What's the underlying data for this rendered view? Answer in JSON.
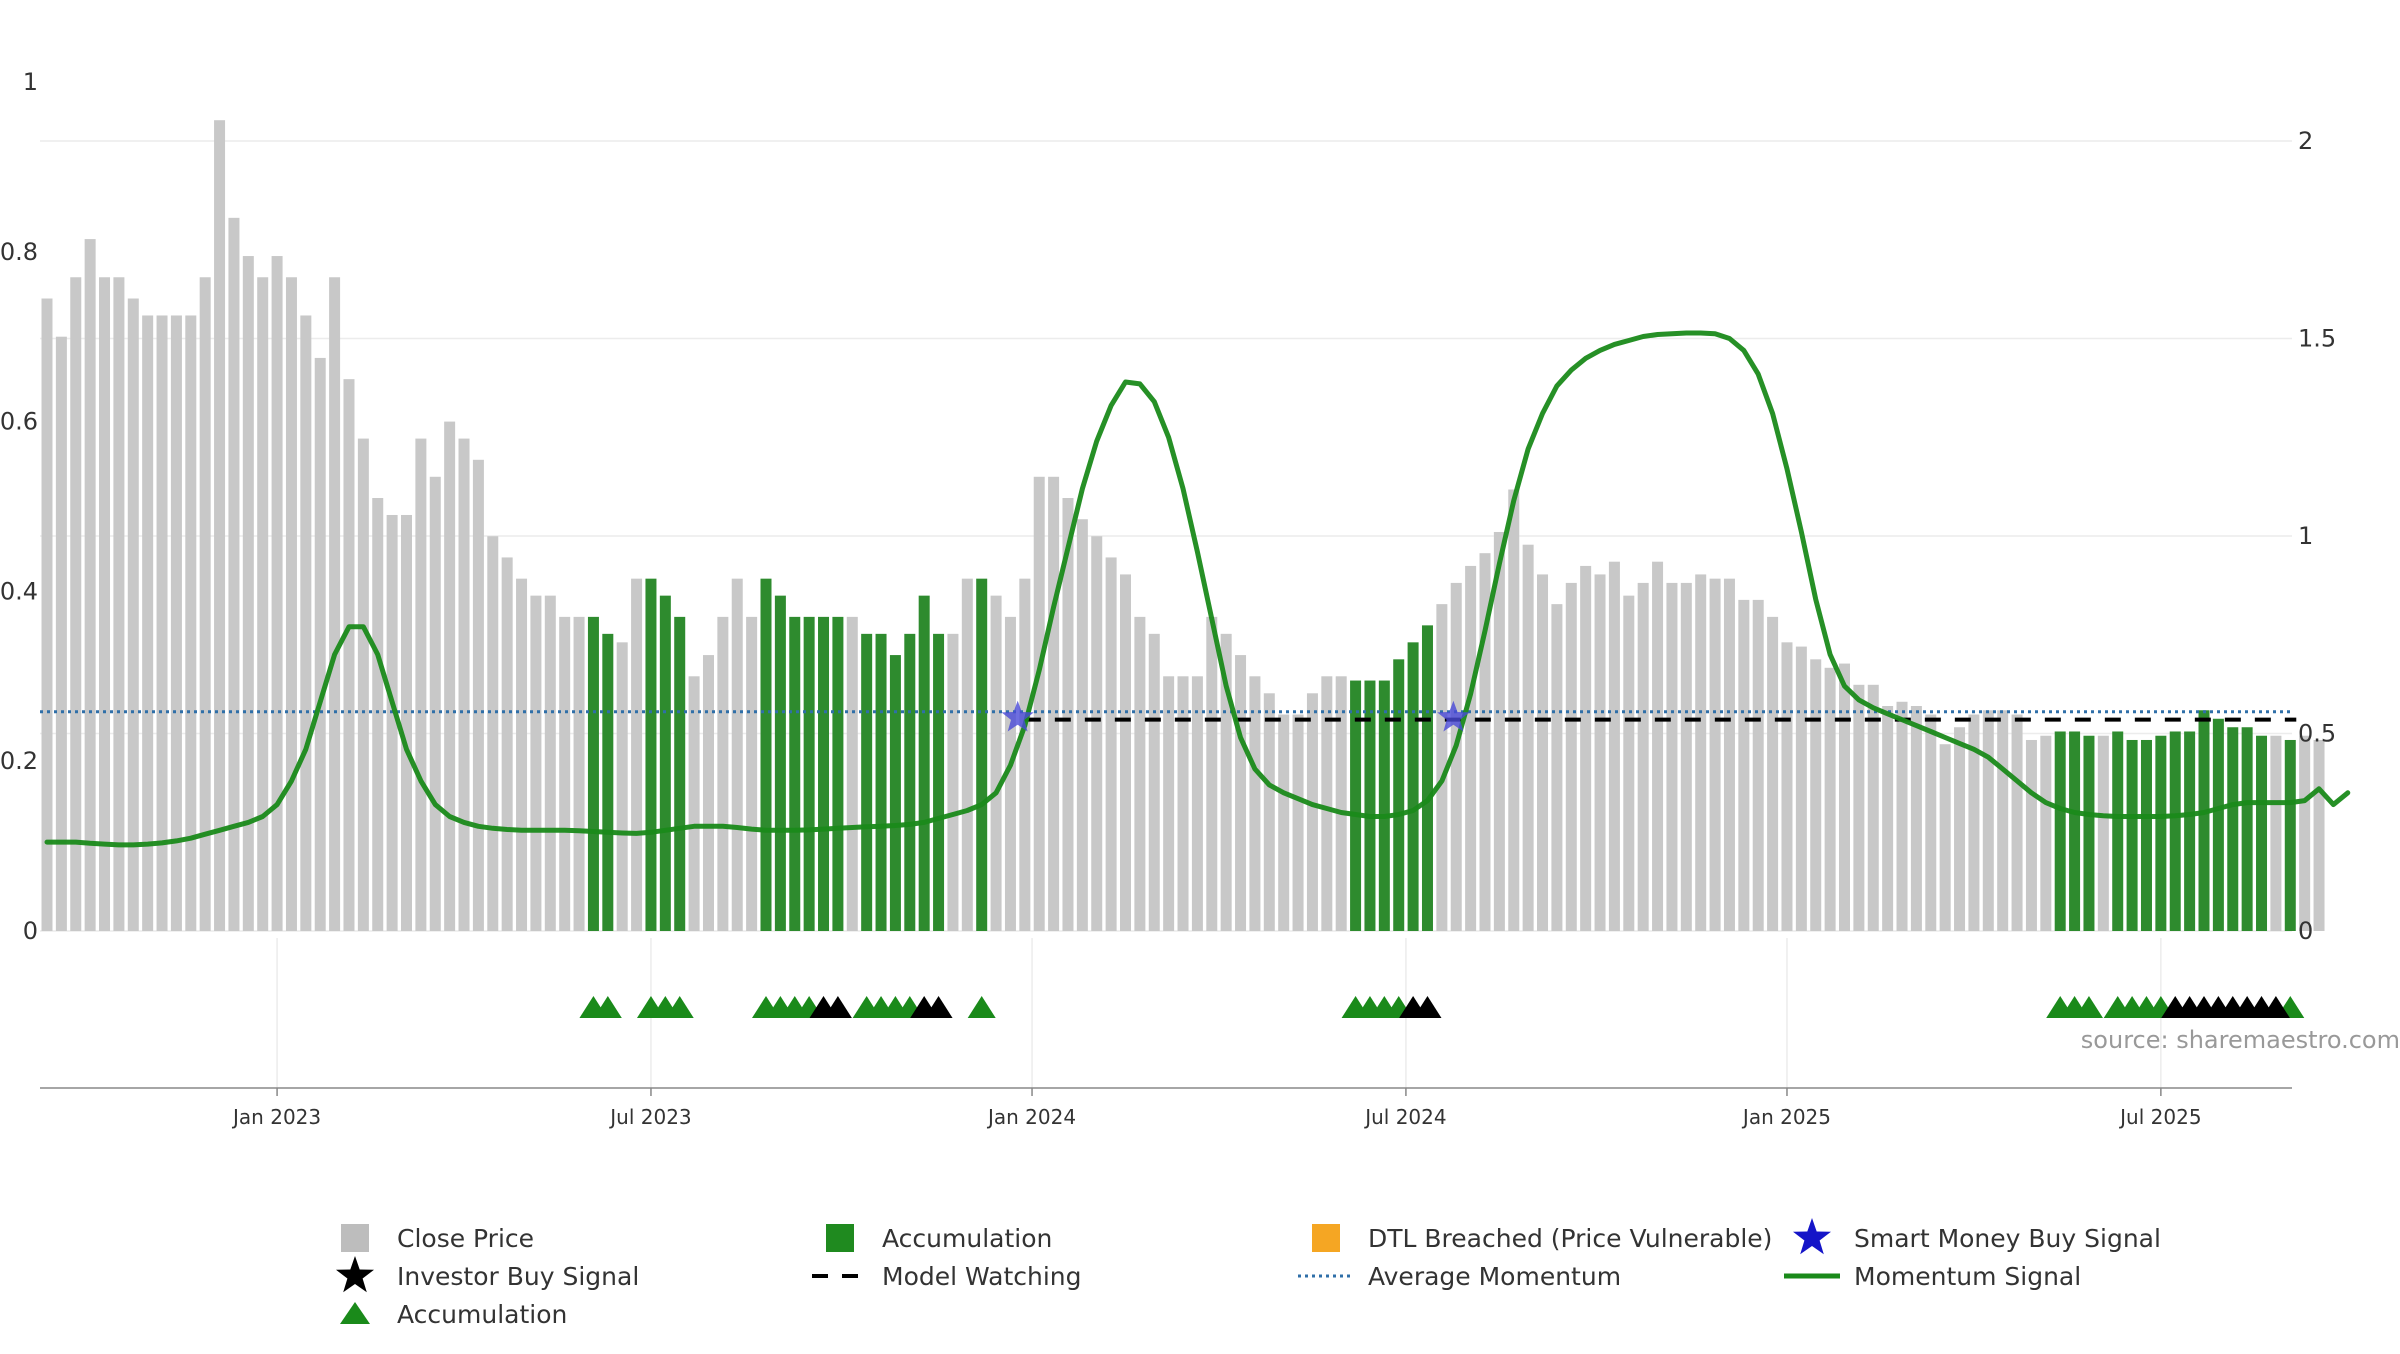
{
  "chart_data": {
    "type": "bar",
    "source_note": "source: sharemaestro.com",
    "x_ticks": [
      "Jan 2023",
      "Jul 2023",
      "Jan 2024",
      "Jul 2024",
      "Jan 2025",
      "Jul 2025"
    ],
    "x_tick_weeks": [
      16,
      42,
      68.5,
      94.5,
      121,
      147
    ],
    "num_weeks": 157,
    "y_left": {
      "ticks": [
        "0",
        "0.2",
        "0.4",
        "0.6",
        "0.8",
        "1"
      ],
      "ylim": [
        0,
        1
      ]
    },
    "y_right": {
      "ticks": [
        "0",
        "0.5",
        "1",
        "1.5",
        "2"
      ],
      "ylim": [
        0,
        2.15
      ]
    },
    "close_price": [
      0.745,
      0.7,
      0.77,
      0.815,
      0.77,
      0.77,
      0.745,
      0.725,
      0.725,
      0.725,
      0.725,
      0.77,
      0.955,
      0.84,
      0.795,
      0.77,
      0.795,
      0.77,
      0.725,
      0.675,
      0.77,
      0.65,
      0.58,
      0.51,
      0.49,
      0.49,
      0.58,
      0.535,
      0.6,
      0.58,
      0.555,
      0.465,
      0.44,
      0.415,
      0.395,
      0.395,
      0.37,
      0.37,
      0.37,
      0.35,
      0.34,
      0.415,
      0.415,
      0.395,
      0.37,
      0.3,
      0.325,
      0.37,
      0.415,
      0.37,
      0.415,
      0.395,
      0.37,
      0.37,
      0.37,
      0.37,
      0.37,
      0.35,
      0.35,
      0.325,
      0.35,
      0.395,
      0.35,
      0.35,
      0.415,
      0.415,
      0.395,
      0.37,
      0.415,
      0.535,
      0.535,
      0.51,
      0.485,
      0.465,
      0.44,
      0.42,
      0.37,
      0.35,
      0.3,
      0.3,
      0.3,
      0.37,
      0.35,
      0.325,
      0.3,
      0.28,
      0.255,
      0.255,
      0.28,
      0.3,
      0.3,
      0.295,
      0.295,
      0.295,
      0.32,
      0.34,
      0.36,
      0.385,
      0.41,
      0.43,
      0.445,
      0.47,
      0.52,
      0.455,
      0.42,
      0.385,
      0.41,
      0.43,
      0.42,
      0.435,
      0.395,
      0.41,
      0.435,
      0.41,
      0.41,
      0.42,
      0.415,
      0.415,
      0.39,
      0.39,
      0.37,
      0.34,
      0.335,
      0.32,
      0.31,
      0.315,
      0.29,
      0.29,
      0.265,
      0.27,
      0.265,
      0.255,
      0.22,
      0.24,
      0.255,
      0.26,
      0.26,
      0.255,
      0.225,
      0.23,
      0.235,
      0.235,
      0.23,
      0.23,
      0.235,
      0.225,
      0.225,
      0.23,
      0.235,
      0.235,
      0.26,
      0.25,
      0.24,
      0.24,
      0.23,
      0.23,
      0.225,
      0.23,
      0.225
    ],
    "accumulation_weeks": [
      38,
      39,
      42,
      43,
      44,
      50,
      51,
      52,
      53,
      54,
      55,
      57,
      58,
      59,
      60,
      61,
      62,
      65,
      91,
      92,
      93,
      94,
      95,
      96,
      140,
      141,
      142,
      144,
      145,
      146,
      147,
      148,
      149,
      150,
      151,
      152,
      153,
      154,
      156
    ],
    "momentum_signal": [
      0.225,
      0.225,
      0.225,
      0.222,
      0.22,
      0.218,
      0.218,
      0.22,
      0.223,
      0.228,
      0.235,
      0.245,
      0.255,
      0.265,
      0.275,
      0.29,
      0.32,
      0.38,
      0.46,
      0.58,
      0.7,
      0.77,
      0.77,
      0.7,
      0.58,
      0.46,
      0.38,
      0.32,
      0.29,
      0.275,
      0.265,
      0.26,
      0.257,
      0.255,
      0.255,
      0.255,
      0.255,
      0.254,
      0.252,
      0.25,
      0.248,
      0.247,
      0.25,
      0.255,
      0.26,
      0.265,
      0.265,
      0.265,
      0.262,
      0.258,
      0.255,
      0.255,
      0.255,
      0.256,
      0.258,
      0.26,
      0.262,
      0.264,
      0.265,
      0.267,
      0.27,
      0.275,
      0.285,
      0.295,
      0.305,
      0.32,
      0.35,
      0.42,
      0.52,
      0.66,
      0.82,
      0.97,
      1.12,
      1.24,
      1.33,
      1.39,
      1.385,
      1.34,
      1.25,
      1.12,
      0.96,
      0.79,
      0.62,
      0.49,
      0.41,
      0.37,
      0.35,
      0.335,
      0.32,
      0.31,
      0.3,
      0.295,
      0.29,
      0.29,
      0.295,
      0.305,
      0.33,
      0.38,
      0.47,
      0.6,
      0.76,
      0.93,
      1.09,
      1.22,
      1.31,
      1.38,
      1.42,
      1.45,
      1.47,
      1.485,
      1.495,
      1.505,
      1.51,
      1.512,
      1.514,
      1.514,
      1.512,
      1.5,
      1.47,
      1.41,
      1.31,
      1.17,
      1.01,
      0.84,
      0.7,
      0.62,
      0.585,
      0.565,
      0.55,
      0.535,
      0.52,
      0.505,
      0.49,
      0.475,
      0.46,
      0.44,
      0.41,
      0.38,
      0.35,
      0.325,
      0.31,
      0.3,
      0.295,
      0.292,
      0.29,
      0.29,
      0.29,
      0.29,
      0.292,
      0.295,
      0.3,
      0.31,
      0.32,
      0.325,
      0.325,
      0.325,
      0.325,
      0.33,
      0.36,
      0.32,
      0.35
    ],
    "average_momentum": 0.555,
    "model_watching_level": 0.535,
    "model_watching_range": [
      68,
      157
    ],
    "smart_money_buy_signals": [
      {
        "week": 67.5,
        "value": 0.54
      },
      {
        "week": 97.8,
        "value": 0.54
      }
    ],
    "triangle_markers": {
      "accumulation_weeks": [
        38,
        39,
        42,
        43,
        44,
        50,
        51,
        52,
        53,
        57,
        58,
        59,
        60,
        65,
        91,
        92,
        93,
        94,
        140,
        141,
        142,
        144,
        145,
        146,
        147,
        156
      ],
      "investor_buy_weeks": [
        54,
        55,
        61,
        62,
        95,
        96,
        148,
        149,
        150,
        151,
        152,
        153,
        154,
        155
      ]
    },
    "legend": [
      {
        "label": "Close Price",
        "marker": "square",
        "color": "#bdbdbd"
      },
      {
        "label": "Accumulation",
        "marker": "square",
        "color": "#1f8a1f"
      },
      {
        "label": "DTL Breached (Price Vulnerable)",
        "marker": "square",
        "color": "#f5a623"
      },
      {
        "label": "Smart Money Buy Signal",
        "marker": "star",
        "color": "#1515c8"
      },
      {
        "label": "Investor Buy Signal",
        "marker": "star",
        "color": "#000000"
      },
      {
        "label": "Model Watching",
        "marker": "dash",
        "color": "#000000"
      },
      {
        "label": "Average Momentum",
        "marker": "dotted",
        "color": "#2f6fa8"
      },
      {
        "label": "Momentum Signal",
        "marker": "line",
        "color": "#1a8a1a"
      },
      {
        "label": "Accumulation",
        "marker": "triangle",
        "color": "#1a8a1a"
      }
    ],
    "colors": {
      "close_price": "#c8c8c8",
      "accumulation_bar": "#2e8b2e",
      "momentum_line": "#1a8a1a",
      "average_momentum": "#2f6fa8",
      "model_watching": "#000000",
      "smart_money": "#4a4ad8",
      "triangle_green": "#1a8a1a",
      "triangle_black": "#000000"
    }
  }
}
